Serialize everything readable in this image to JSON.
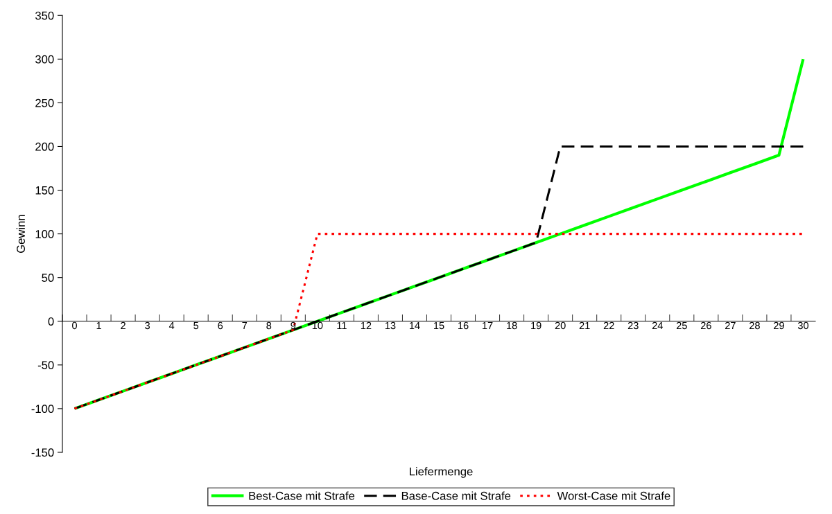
{
  "chart_data": {
    "type": "line",
    "xlabel": "Liefermenge",
    "ylabel": "Gewinn",
    "categories": [
      "0",
      "1",
      "2",
      "3",
      "4",
      "5",
      "6",
      "7",
      "8",
      "9",
      "10",
      "11",
      "12",
      "13",
      "14",
      "15",
      "16",
      "17",
      "18",
      "19",
      "20",
      "21",
      "22",
      "23",
      "24",
      "25",
      "26",
      "27",
      "28",
      "29",
      "30"
    ],
    "series": [
      {
        "name": "Best-Case mit Strafe",
        "color": "#00ff00",
        "line_style": "solid",
        "values": [
          -100,
          -90,
          -80,
          -70,
          -60,
          -50,
          -40,
          -30,
          -20,
          -10,
          0,
          10,
          20,
          30,
          40,
          50,
          60,
          70,
          80,
          90,
          100,
          110,
          120,
          130,
          140,
          150,
          160,
          170,
          180,
          190,
          300
        ]
      },
      {
        "name": "Base-Case mit Strafe",
        "color": "#000000",
        "line_style": "dashed",
        "values": [
          -100,
          -90,
          -80,
          -70,
          -60,
          -50,
          -40,
          -30,
          -20,
          -10,
          0,
          10,
          20,
          30,
          40,
          50,
          60,
          70,
          80,
          90,
          200,
          200,
          200,
          200,
          200,
          200,
          200,
          200,
          200,
          200,
          200
        ]
      },
      {
        "name": "Worst-Case mit Strafe",
        "color": "#ff0000",
        "line_style": "dotted",
        "values": [
          -100,
          -90,
          -80,
          -70,
          -60,
          -50,
          -40,
          -30,
          -20,
          -10,
          100,
          100,
          100,
          100,
          100,
          100,
          100,
          100,
          100,
          100,
          100,
          100,
          100,
          100,
          100,
          100,
          100,
          100,
          100,
          100,
          100
        ]
      }
    ],
    "ylim": [
      -150,
      350
    ],
    "yticks": [
      -150,
      -100,
      -50,
      0,
      50,
      100,
      150,
      200,
      250,
      300,
      350
    ],
    "grid": false,
    "legend": "bottom",
    "marker": "none"
  }
}
